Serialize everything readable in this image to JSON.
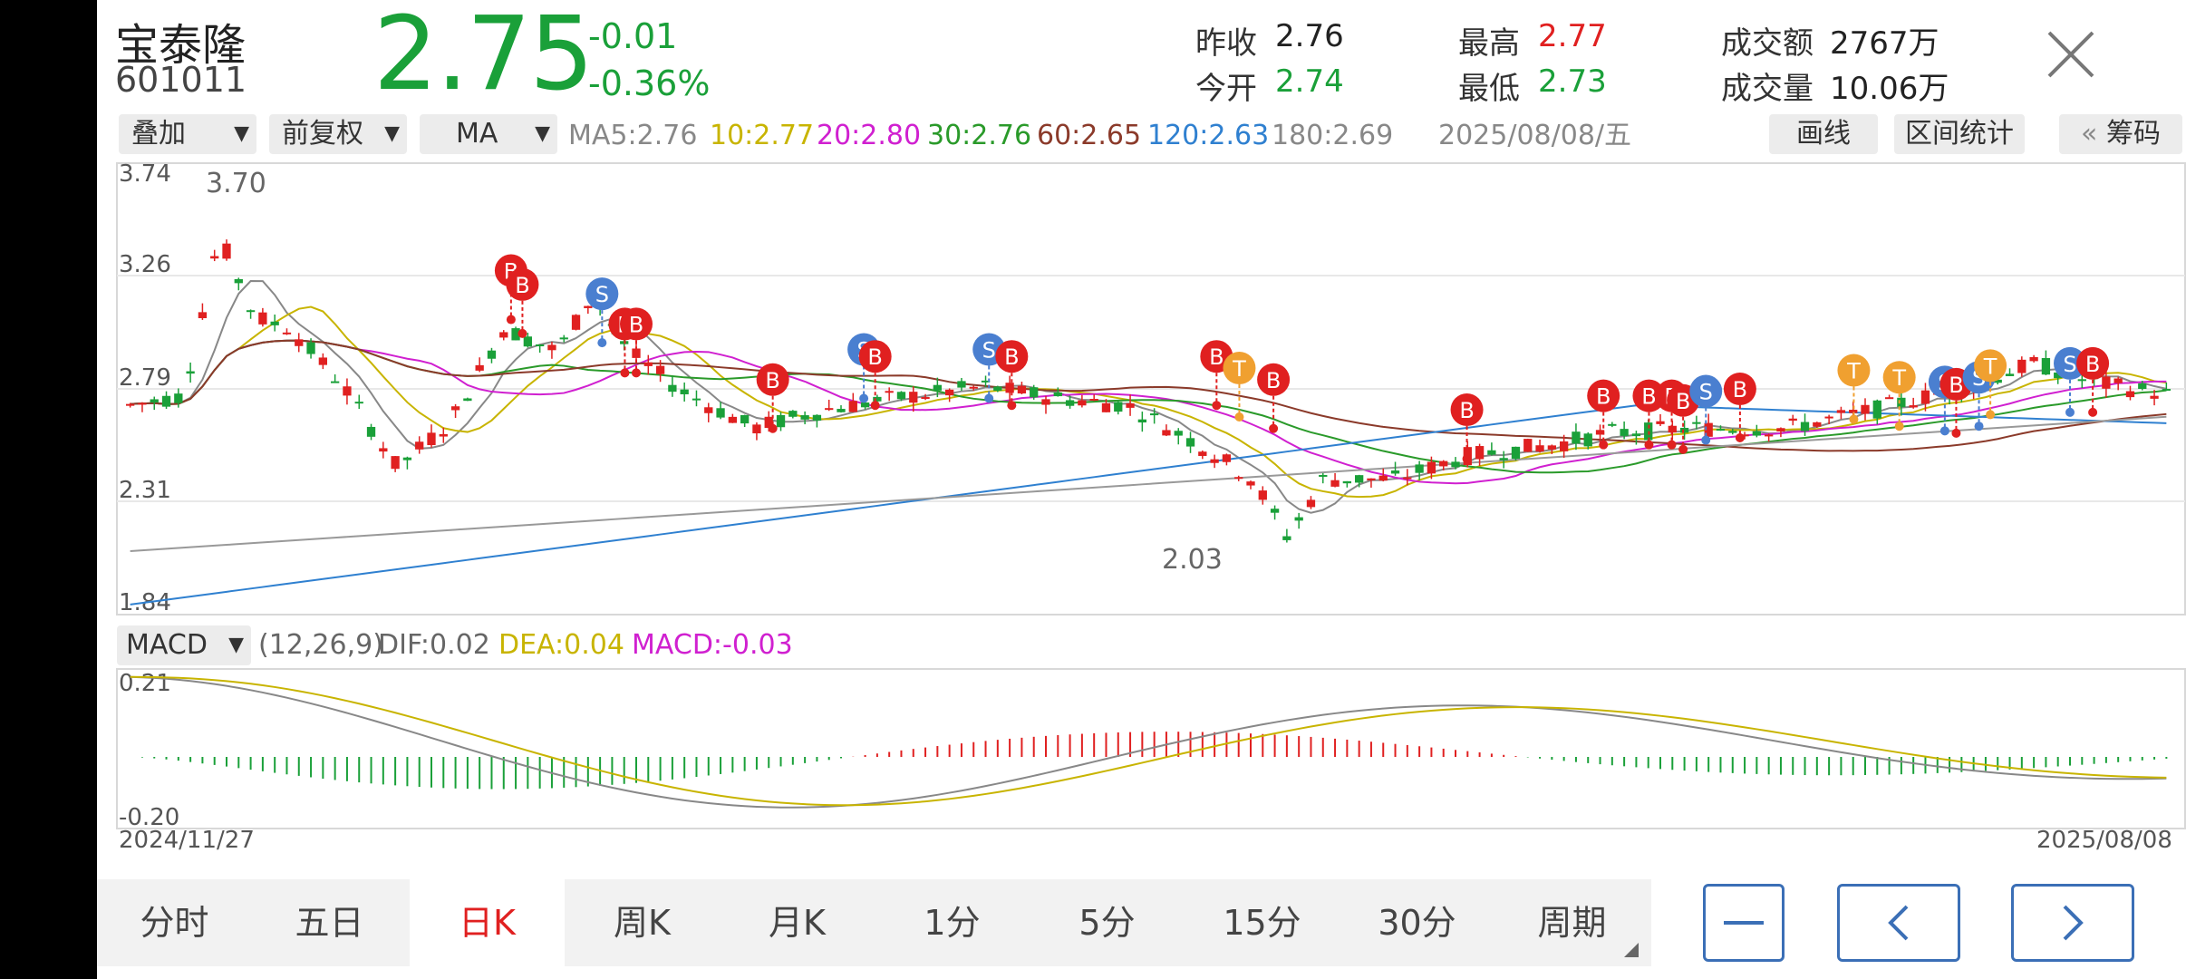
{
  "header": {
    "name": "宝泰隆",
    "code": "601011",
    "price": "2.75",
    "change": "-0.01",
    "change_pct": "-0.36%",
    "stats": [
      {
        "label": "昨收",
        "value": "2.76",
        "color": "#222222"
      },
      {
        "label": "今开",
        "value": "2.74",
        "color": "#1aa039"
      },
      {
        "label": "最高",
        "value": "2.77",
        "color": "#e02020"
      },
      {
        "label": "最低",
        "value": "2.73",
        "color": "#1aa039"
      },
      {
        "label": "成交额",
        "value": "2767万",
        "color": "#222222"
      },
      {
        "label": "成交量",
        "value": "10.06万",
        "color": "#222222"
      }
    ],
    "close_icon": "close-icon"
  },
  "toolbar": {
    "overlay": "叠加",
    "adjust": "前复权",
    "indicator": "MA",
    "ma": [
      {
        "label": "MA5:",
        "value": "2.76",
        "color": "#888888"
      },
      {
        "label": "10:",
        "value": "2.77",
        "color": "#c8b400"
      },
      {
        "label": "20:",
        "value": "2.80",
        "color": "#d020d0"
      },
      {
        "label": "30:",
        "value": "2.76",
        "color": "#2a9a2a"
      },
      {
        "label": "60:",
        "value": "2.65",
        "color": "#8b3a2a"
      },
      {
        "label": "120:",
        "value": "2.63",
        "color": "#2f80d0"
      },
      {
        "label": "180:",
        "value": "2.69",
        "color": "#888888"
      }
    ],
    "date": "2025/08/08/五",
    "draw_btn": "画线",
    "range_btn": "区间统计",
    "chip_btn": "筹码",
    "chip_prefix": "«"
  },
  "kline": {
    "y_labels": [
      "3.74",
      "3.26",
      "2.79",
      "2.31",
      "1.84"
    ],
    "max_label": "3.70",
    "min_label": "2.03"
  },
  "macd": {
    "selector": "MACD",
    "params": "(12,26,9)",
    "dif_label": "DIF:",
    "dif_value": "0.02",
    "dea_label": "DEA:",
    "dea_value": "0.04",
    "macd_label": "MACD:",
    "macd_value": "-0.03",
    "y_top": "0.21",
    "y_bottom": "-0.20"
  },
  "dates": {
    "start": "2024/11/27",
    "end": "2025/08/08"
  },
  "tabs": [
    "分时",
    "五日",
    "日K",
    "周K",
    "月K",
    "1分",
    "5分",
    "15分",
    "30分",
    "周期"
  ],
  "active_tab": "日K",
  "colors": {
    "up": "#e02020",
    "down": "#1aa039",
    "accent": "#3b6fb6"
  }
}
